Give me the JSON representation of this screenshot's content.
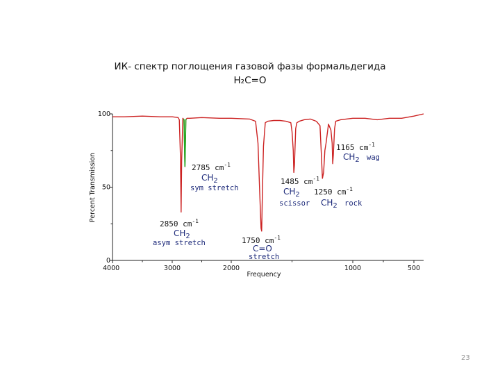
{
  "slide": {
    "title_line1": "ИК- спектр поглощения газовой фазы формальдегида",
    "title_line2": "H₂C=O",
    "page_number": "23"
  },
  "chart_data": {
    "type": "line",
    "xlabel": "Frequency",
    "ylabel": "Percent Transmission",
    "xlim": [
      4000,
      450
    ],
    "ylim": [
      0,
      100
    ],
    "x_ticks": [
      4000,
      3000,
      2000,
      1000,
      500
    ],
    "y_ticks": [
      0,
      50,
      100
    ],
    "colors": {
      "spectrum": "#cc2222",
      "highlight": "#22aa22",
      "annotation": "#1d2a7a"
    },
    "series": [
      {
        "x": [
          4000,
          3800,
          3500,
          3200,
          3000,
          2900,
          2880,
          2860,
          2850,
          2840,
          2820,
          2800,
          2785,
          2770,
          2750,
          2700,
          2500,
          2200,
          2000,
          1850,
          1800,
          1780,
          1765,
          1755,
          1750,
          1745,
          1735,
          1720,
          1700,
          1650,
          1600,
          1550,
          1510,
          1500,
          1490,
          1485,
          1480,
          1470,
          1460,
          1440,
          1400,
          1350,
          1300,
          1270,
          1260,
          1250,
          1240,
          1230,
          1220,
          1200,
          1180,
          1170,
          1165,
          1160,
          1150,
          1140,
          1100,
          1000,
          900,
          800,
          700,
          600,
          500,
          450
        ],
        "y": [
          98,
          98,
          98.5,
          98,
          98,
          97.5,
          96,
          70,
          33,
          68,
          97,
          96,
          64,
          96,
          97,
          97,
          97.5,
          97,
          97,
          96.5,
          95,
          80,
          45,
          22,
          20,
          40,
          78,
          94,
          95,
          95.5,
          95.5,
          95,
          94,
          88,
          75,
          60,
          65,
          90,
          94,
          95,
          96,
          96.5,
          95,
          92,
          75,
          56,
          60,
          75,
          80,
          93,
          89,
          80,
          66,
          72,
          90,
          95,
          96,
          97,
          97,
          96,
          97,
          97,
          98.5,
          100
        ]
      }
    ],
    "annotations": [
      {
        "number": "2785 cm",
        "superscript": "-1",
        "group": "CH",
        "subscript": "2",
        "mode": "sym stretch"
      },
      {
        "number": "2850 cm",
        "superscript": "-1",
        "group": "CH",
        "subscript": "2",
        "mode": "asym stretch"
      },
      {
        "number": "1750 cm",
        "superscript": "-1",
        "group": "C=O",
        "subscript": "",
        "mode": "stretch"
      },
      {
        "number": "1485 cm",
        "superscript": "-1",
        "group": "CH",
        "subscript": "2",
        "mode": "scissor"
      },
      {
        "number": "1250 cm",
        "superscript": "-1",
        "group": "CH",
        "subscript": "2",
        "mode": "rock"
      },
      {
        "number": "1165 cm",
        "superscript": "-1",
        "group": "CH",
        "subscript": "2",
        "mode": "wag"
      }
    ]
  }
}
